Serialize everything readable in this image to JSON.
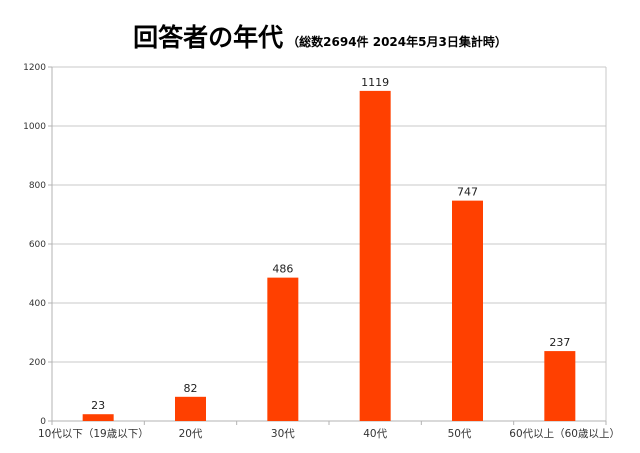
{
  "chart_data": {
    "type": "bar",
    "title": "回答者の年代",
    "subtitle": "（総数2694件  2024年5月3日集計時）",
    "categories": [
      "10代以下（19歳以下）",
      "20代",
      "30代",
      "40代",
      "50代",
      "60代以上（60歳以上）"
    ],
    "values": [
      23,
      82,
      486,
      1119,
      747,
      237
    ],
    "ylim": [
      0,
      1200
    ],
    "yticks": [
      0,
      200,
      400,
      600,
      800,
      1000,
      1200
    ],
    "grid": true,
    "bar_color": "#ff4000",
    "data_labels": true
  }
}
